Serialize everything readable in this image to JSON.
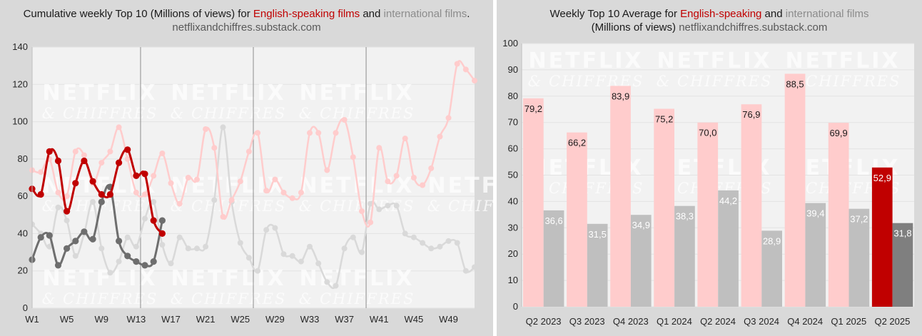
{
  "left": {
    "title_prefix": "Cumulative weekly Top 10 (Millions of views) for ",
    "title_red": "English-speaking films",
    "title_mid": " and ",
    "title_grey": "international films",
    "title_end": ".",
    "subtitle": "netflixandchiffres.substack.com"
  },
  "right": {
    "title_prefix": "Weekly Top 10 Average for ",
    "title_red": "English-speaking",
    "title_mid": " and ",
    "title_grey": "international films",
    "title_line2": "(Millions of views) ",
    "subtitle": "netflixandchiffres.substack.com"
  },
  "watermark": {
    "line1": "NETFLIX",
    "line2": "& CHIFFRES"
  },
  "colors": {
    "red_dark": "#c00000",
    "red_light": "#ffcccc",
    "grey_dark": "#7f7f7f",
    "grey_light": "#bfbfbf",
    "line_grey_dark": "#6e6e6e",
    "line_grey_light": "#d9d9d9",
    "plot_bg": "#f2f2f2"
  },
  "chart_data": [
    {
      "type": "line",
      "ylim": [
        0,
        140
      ],
      "yticks": [
        0,
        20,
        40,
        60,
        80,
        100,
        120,
        140
      ],
      "xlim": [
        1,
        52
      ],
      "xticks": [
        1,
        5,
        9,
        13,
        17,
        21,
        25,
        29,
        33,
        37,
        41,
        45,
        49
      ],
      "xtick_labels": [
        "W1",
        "W5",
        "W9",
        "W13",
        "W17",
        "W21",
        "W25",
        "W29",
        "W33",
        "W37",
        "W41",
        "W45",
        "W49"
      ],
      "quarter_lines": [
        13.5,
        26.5,
        39.5
      ],
      "grid": true,
      "series": [
        {
          "role": "english_prev",
          "color": "#ffcccc",
          "x": [
            1,
            2,
            3,
            4,
            5,
            6,
            7,
            8,
            9,
            10,
            11,
            12,
            13,
            14,
            15,
            16,
            17,
            18,
            19,
            20,
            21,
            22,
            23,
            24,
            25,
            26,
            27,
            28,
            29,
            30,
            31,
            32,
            33,
            34,
            35,
            36,
            37,
            38,
            39,
            40,
            41,
            42,
            43,
            44,
            45,
            46,
            47,
            48,
            49,
            50,
            51,
            52
          ],
          "y": [
            74,
            73,
            80,
            62,
            60,
            84,
            82,
            67,
            78,
            84,
            97,
            80,
            62,
            61,
            71,
            83,
            67,
            56,
            70,
            69,
            96,
            86,
            49,
            58,
            68,
            84,
            94,
            63,
            69,
            62,
            59,
            62,
            94,
            94,
            74,
            94,
            101,
            81,
            52,
            46,
            86,
            68,
            71,
            91,
            70,
            66,
            75,
            92,
            102,
            131,
            128,
            122
          ]
        },
        {
          "role": "international_prev",
          "color": "#d9d9d9",
          "x": [
            1,
            2,
            3,
            4,
            5,
            6,
            7,
            8,
            9,
            10,
            11,
            12,
            13,
            14,
            15,
            16,
            17,
            18,
            19,
            20,
            21,
            22,
            23,
            24,
            25,
            26,
            27,
            28,
            29,
            30,
            31,
            32,
            33,
            34,
            35,
            36,
            37,
            38,
            39,
            40,
            41,
            42,
            43,
            44,
            45,
            46,
            47,
            48,
            49,
            50,
            51,
            52
          ],
          "y": [
            45,
            40,
            33,
            54,
            47,
            28,
            40,
            57,
            32,
            19,
            25,
            38,
            33,
            48,
            57,
            34,
            24,
            38,
            32,
            32,
            33,
            58,
            97,
            57,
            35,
            27,
            20,
            42,
            43,
            29,
            28,
            25,
            33,
            24,
            14,
            12,
            32,
            38,
            30,
            56,
            53,
            55,
            55,
            40,
            38,
            35,
            32,
            33,
            36,
            35,
            20,
            22
          ]
        },
        {
          "role": "english_current",
          "color": "#c00000",
          "x": [
            1,
            2,
            3,
            4,
            5,
            6,
            7,
            8,
            9,
            10,
            11,
            12,
            13,
            14,
            15,
            16
          ],
          "y": [
            64,
            61,
            84,
            79,
            52,
            67,
            79,
            68,
            61,
            61,
            78,
            85,
            71,
            72,
            47,
            40
          ]
        },
        {
          "role": "international_current",
          "color": "#6e6e6e",
          "x": [
            1,
            2,
            3,
            4,
            5,
            6,
            7,
            8,
            9,
            10,
            11,
            12,
            13,
            14,
            15,
            16
          ],
          "y": [
            26,
            38,
            39,
            23,
            32,
            36,
            41,
            37,
            57,
            65,
            36,
            28,
            25,
            23,
            25,
            47
          ]
        }
      ]
    },
    {
      "type": "bar",
      "ylim": [
        0,
        100
      ],
      "yticks": [
        0,
        10,
        20,
        30,
        40,
        50,
        60,
        70,
        80,
        90,
        100
      ],
      "grid": true,
      "categories": [
        "Q2 2023",
        "Q3 2023",
        "Q4 2023",
        "Q1 2024",
        "Q2 2024",
        "Q3 2024",
        "Q4 2024",
        "Q1 2025",
        "Q2 2025"
      ],
      "series": [
        {
          "role": "english",
          "values": [
            79.2,
            66.2,
            83.9,
            75.2,
            70.0,
            76.9,
            88.5,
            69.9,
            52.9
          ],
          "labels": [
            "79,2",
            "66,2",
            "83,9",
            "75,2",
            "70,0",
            "76,9",
            "88,5",
            "69,9",
            "52,9"
          ]
        },
        {
          "role": "international",
          "values": [
            36.6,
            31.5,
            34.9,
            38.3,
            44.2,
            28.9,
            39.4,
            37.2,
            31.8
          ],
          "labels": [
            "36,6",
            "31,5",
            "34,9",
            "38,3",
            "44,2",
            "28,9",
            "39,4",
            "37,2",
            "31,8"
          ]
        }
      ]
    }
  ]
}
